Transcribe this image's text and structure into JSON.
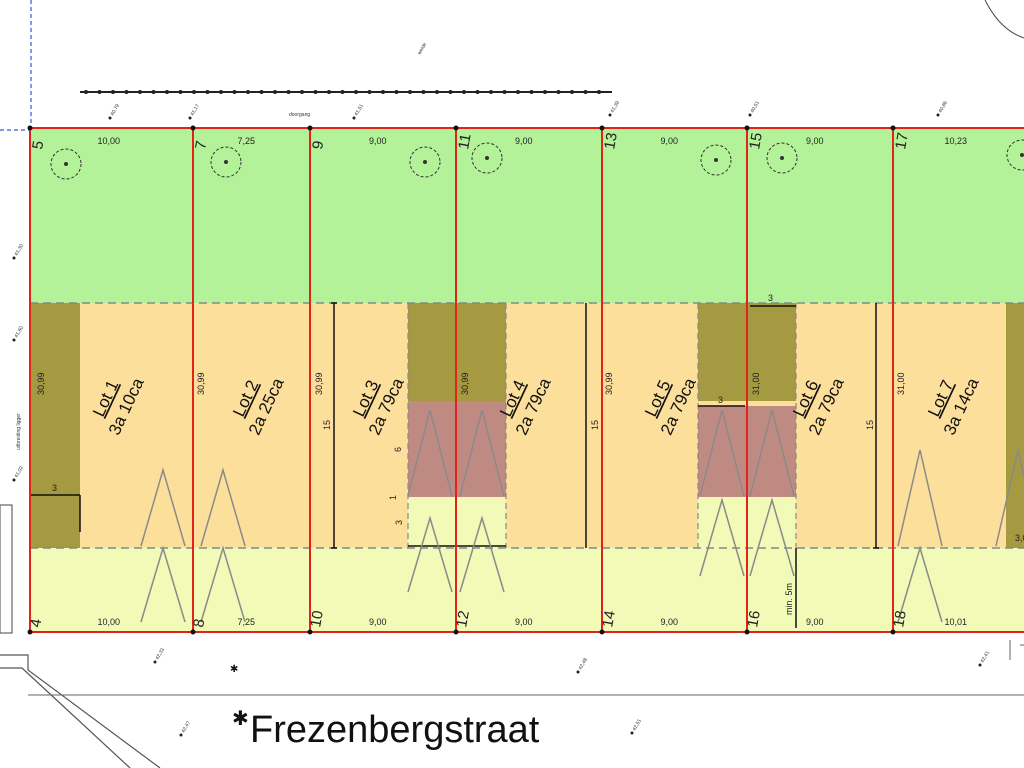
{
  "street": {
    "name": "Frezenbergstraat"
  },
  "path_label": "doorgang",
  "top_note": "weide",
  "side_note": "uitbreiding ligger",
  "boundary": {
    "red": "#e2231a",
    "garden": "#b3f299",
    "building": "#fddf9c",
    "annex": "#a59a42",
    "front": "#f1fbb7",
    "core": "#bf8a82"
  },
  "lots": [
    {
      "name": "Lot 1",
      "area": "3a 10ca",
      "depth": "30,99",
      "width_back": "10,00",
      "width_front": "10,00",
      "num_back": "5",
      "num_front": "4"
    },
    {
      "name": "Lot 2",
      "area": "2a 25ca",
      "depth": "30,99",
      "width_back": "7,25",
      "width_front": "7,25",
      "num_back": "7",
      "num_front": "8"
    },
    {
      "name": "Lot 3",
      "area": "2a 79ca",
      "depth": "30,99",
      "width_back": "9,00",
      "width_front": "9,00",
      "num_back": "9",
      "num_front": "10"
    },
    {
      "name": "Lot 4",
      "area": "2a 79ca",
      "depth": "30,99",
      "width_back": "9,00",
      "width_front": "9,00",
      "num_back": "11",
      "num_front": "12"
    },
    {
      "name": "Lot 5",
      "area": "2a 79ca",
      "depth": "30,99",
      "width_back": "9,00",
      "width_front": "9,00",
      "num_back": "13",
      "num_front": "14"
    },
    {
      "name": "Lot 6",
      "area": "2a 79ca",
      "depth": "31,00",
      "width_back": "9,00",
      "width_front": "9,00",
      "num_back": "15",
      "num_front": "16"
    },
    {
      "name": "Lot 7",
      "area": "3a 14ca",
      "depth": "31,00",
      "width_back": "10,23",
      "width_front": "10,01",
      "num_back": "17",
      "num_front": "18"
    }
  ],
  "dims": {
    "build_depth": "15",
    "small_3": "3",
    "six": "6",
    "one": "1",
    "three_b": "3",
    "min5m": "min. 5m",
    "side_300": "3,00"
  },
  "spot_heights": [
    "40,79",
    "41,17",
    "41,51",
    "41,39",
    "40,51",
    "40,86",
    "41,30",
    "41,60",
    "41,02",
    "42,33",
    "42,48",
    "42,47",
    "42,51",
    "42,41"
  ]
}
